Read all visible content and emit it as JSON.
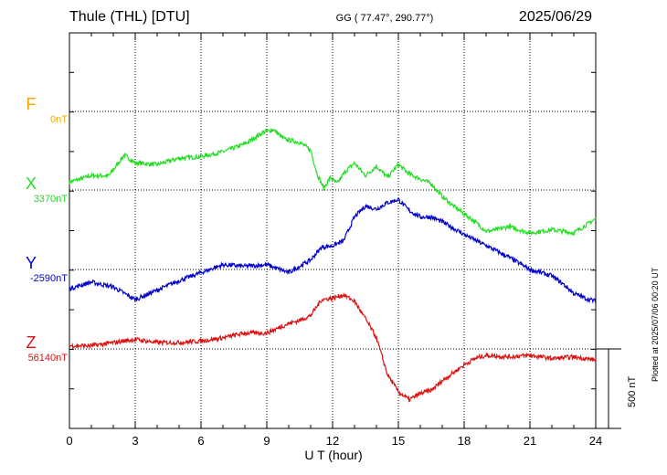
{
  "header": {
    "station": "Thule (THL)  [DTU]",
    "coords": "GG ( 77.47°, 290.77°)",
    "date": "2025/06/29"
  },
  "footer": {
    "xlabel": "U T (hour)",
    "plotted": "Plotted at 2025/07/06 00:20 UT",
    "scale_label": "500 nT"
  },
  "channels": [
    {
      "name": "F",
      "baseline": "0nT",
      "color": "#f5a800"
    },
    {
      "name": "X",
      "baseline": "3370nT",
      "color": "#22dd22"
    },
    {
      "name": "Y",
      "baseline": "-2590nT",
      "color": "#0000cc"
    },
    {
      "name": "Z",
      "baseline": "56140nT",
      "color": "#dd1111"
    }
  ],
  "chart_data": {
    "type": "line",
    "xlabel": "U T (hour)",
    "xlim": [
      0,
      24
    ],
    "xticks": [
      0,
      3,
      6,
      9,
      12,
      15,
      18,
      21,
      24
    ],
    "scale_bar_nT": 500,
    "grid": true,
    "series": [
      {
        "name": "X",
        "baseline_nT": 3370,
        "color": "#22dd22",
        "x": [
          0,
          1,
          1.8,
          2.5,
          3,
          4,
          5,
          6,
          7,
          8,
          8.8,
          9.3,
          9.8,
          10.5,
          11,
          11.3,
          11.6,
          11.9,
          12.2,
          12.6,
          13,
          13.5,
          14,
          14.5,
          15,
          15.5,
          16,
          16.5,
          17,
          17.5,
          18,
          18.5,
          19,
          19.5,
          20,
          21,
          22,
          23,
          24
        ],
        "y": [
          50,
          90,
          90,
          220,
          170,
          160,
          200,
          210,
          240,
          290,
          360,
          380,
          320,
          300,
          250,
          100,
          10,
          80,
          40,
          120,
          170,
          90,
          150,
          80,
          160,
          100,
          70,
          40,
          -40,
          -100,
          -150,
          -200,
          -260,
          -250,
          -230,
          -270,
          -250,
          -270,
          -180
        ]
      },
      {
        "name": "Y",
        "baseline_nT": -2590,
        "color": "#0000cc",
        "x": [
          0,
          1,
          2,
          3,
          4,
          5,
          6,
          7,
          8,
          9,
          10,
          11,
          11.5,
          12,
          12.5,
          13,
          13.5,
          14,
          14.5,
          15,
          15.5,
          16,
          16.5,
          17,
          18,
          19,
          20,
          21,
          22,
          22.5,
          23,
          23.5,
          24
        ],
        "y": [
          -120,
          -80,
          -110,
          -190,
          -130,
          -70,
          -20,
          30,
          20,
          30,
          -20,
          60,
          140,
          150,
          180,
          330,
          400,
          380,
          420,
          440,
          370,
          330,
          330,
          300,
          220,
          150,
          80,
          0,
          -40,
          -90,
          -150,
          -180,
          -200
        ]
      },
      {
        "name": "Z",
        "baseline_nT": 56140,
        "color": "#dd1111",
        "x": [
          0,
          1,
          2,
          3,
          4,
          5,
          6,
          7,
          8,
          9,
          10,
          10.5,
          11,
          11.5,
          12,
          12.5,
          13,
          13.5,
          14,
          14.5,
          15,
          15.5,
          16,
          16.5,
          17,
          18,
          18.5,
          19,
          20,
          21,
          22,
          23,
          24
        ],
        "y": [
          20,
          20,
          40,
          60,
          40,
          40,
          50,
          70,
          100,
          100,
          160,
          180,
          210,
          310,
          320,
          340,
          300,
          190,
          70,
          -160,
          -270,
          -320,
          -280,
          -260,
          -200,
          -100,
          -60,
          -40,
          -50,
          -40,
          -60,
          -50,
          -70
        ]
      }
    ]
  }
}
